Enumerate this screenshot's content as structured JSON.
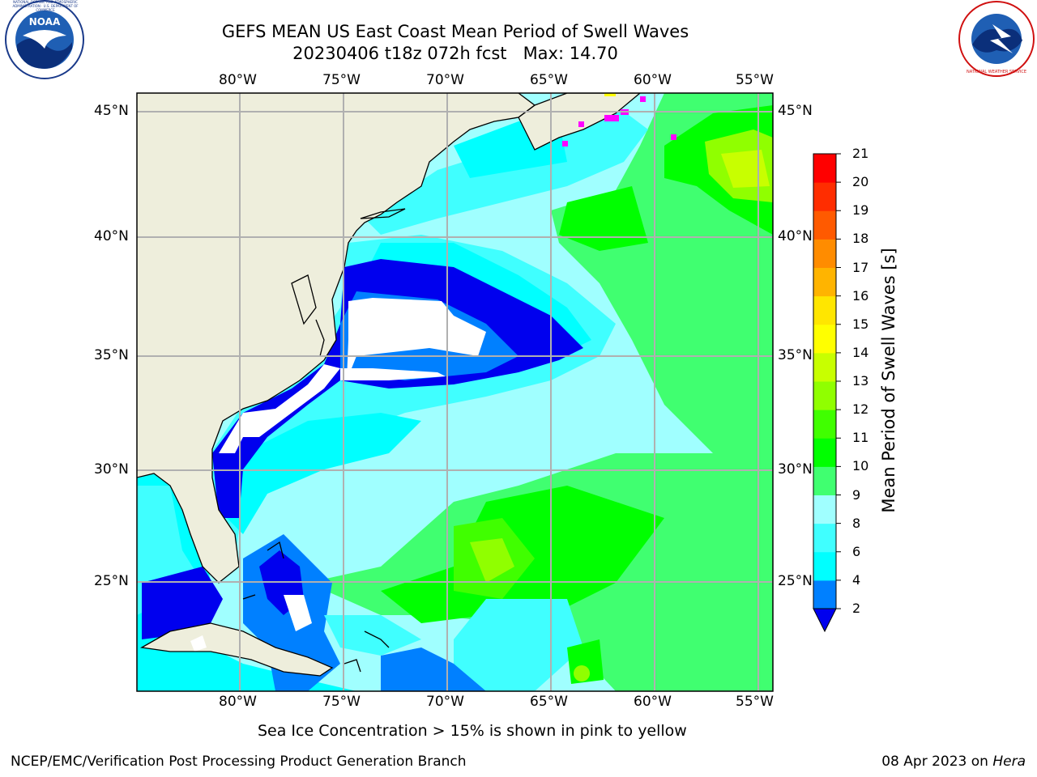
{
  "title_line1": "GEFS MEAN US East Coast Mean Period of Swell Waves",
  "title_line2": "20230406 t18z 072h fcst   Max: 14.70",
  "logos": {
    "left": {
      "name": "noaa-logo",
      "text": "NOAA",
      "ring_text": "NATIONAL OCEANIC AND ATMOSPHERIC ADMINISTRATION · U.S. DEPARTMENT OF COMMERCE"
    },
    "right": {
      "name": "nws-logo",
      "ring_text": "NATIONAL WEATHER SERVICE"
    }
  },
  "lon_labels": [
    "80°W",
    "75°W",
    "70°W",
    "65°W",
    "60°W",
    "55°W"
  ],
  "lat_labels": [
    "45°N",
    "40°N",
    "35°N",
    "30°N",
    "25°N"
  ],
  "colorbar": {
    "label": "Mean Period of Swell Waves [s]",
    "ticks": [
      "2",
      "4",
      "6",
      "8",
      "9",
      "10",
      "11",
      "12",
      "13",
      "14",
      "15",
      "16",
      "17",
      "18",
      "19",
      "20",
      "21"
    ],
    "colors": [
      "#0000ee",
      "#0080ff",
      "#00ffff",
      "#40ffff",
      "#a0ffff",
      "#40ff70",
      "#00ff00",
      "#40ff00",
      "#90ff00",
      "#c8ff00",
      "#ffff00",
      "#ffe600",
      "#ffb400",
      "#ff8c00",
      "#ff5a00",
      "#ff2d00",
      "#ff0000"
    ]
  },
  "land_color": "#eeeedc",
  "note": "Sea Ice Concentration > 15% is shown in pink to yellow",
  "footer_left": "NCEP/EMC/Verification Post Processing Product Generation Branch",
  "footer_right_date": "08 Apr 2023 on",
  "footer_right_machine": "Hera"
}
